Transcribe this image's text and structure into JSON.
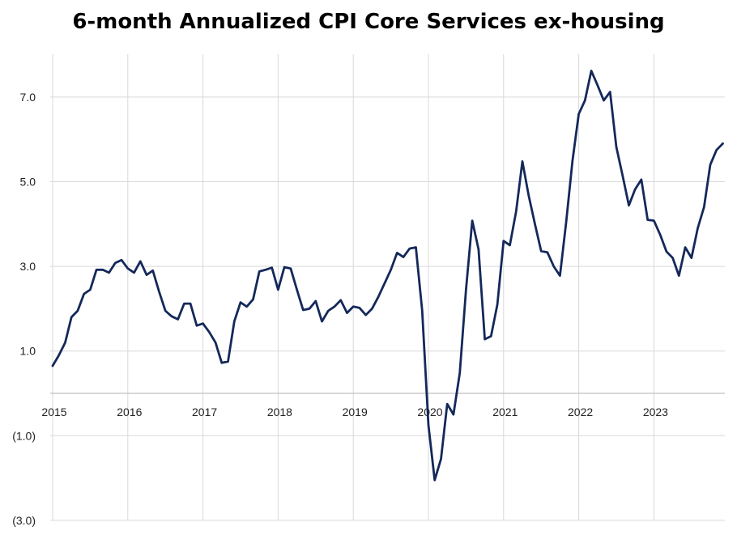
{
  "chart_data": {
    "type": "line",
    "title": "6-month Annualized CPI Core Services ex-housing",
    "xlabel": "",
    "ylabel": "",
    "x_ticks": [
      "2015",
      "2016",
      "2017",
      "2018",
      "2019",
      "2020",
      "2021",
      "2022",
      "2023"
    ],
    "y_ticks": [
      "(3.0)",
      "(1.0)",
      "1.0",
      "3.0",
      "5.0",
      "7.0"
    ],
    "y_tick_values": [
      -3,
      -1,
      1,
      3,
      5,
      7
    ],
    "xlim": [
      2015.0,
      2024.0
    ],
    "ylim": [
      -3.0,
      8.0
    ],
    "grid": true,
    "legend": "none",
    "colors": {
      "line": "#14285a",
      "grid": "#d9d9d9",
      "axis": "#bfbfbf"
    },
    "series": [
      {
        "x": [
          2015.0,
          2015.083,
          2015.167,
          2015.25,
          2015.333,
          2015.417,
          2015.5,
          2015.583,
          2015.667,
          2015.75,
          2015.833,
          2015.917,
          2016.0,
          2016.083,
          2016.167,
          2016.25,
          2016.333,
          2016.417,
          2016.5,
          2016.583,
          2016.667,
          2016.75,
          2016.833,
          2016.917,
          2017.0,
          2017.083,
          2017.167,
          2017.25,
          2017.333,
          2017.417,
          2017.5,
          2017.583,
          2017.667,
          2017.75,
          2017.833,
          2017.917,
          2018.0,
          2018.083,
          2018.167,
          2018.25,
          2018.333,
          2018.417,
          2018.5,
          2018.583,
          2018.667,
          2018.75,
          2018.833,
          2018.917,
          2019.0,
          2019.083,
          2019.167,
          2019.25,
          2019.333,
          2019.417,
          2019.5,
          2019.583,
          2019.667,
          2019.75,
          2019.833,
          2019.917,
          2020.0,
          2020.083,
          2020.167,
          2020.25,
          2020.333,
          2020.417,
          2020.5,
          2020.583,
          2020.667,
          2020.75,
          2020.833,
          2020.917,
          2021.0,
          2021.083,
          2021.167,
          2021.25,
          2021.333,
          2021.417,
          2021.5,
          2021.583,
          2021.667,
          2021.75,
          2021.833,
          2021.917,
          2022.0,
          2022.083,
          2022.167,
          2022.25,
          2022.333,
          2022.417,
          2022.5,
          2022.583,
          2022.667,
          2022.75,
          2022.833,
          2022.917,
          2023.0,
          2023.083,
          2023.167,
          2023.25,
          2023.333,
          2023.417,
          2023.5,
          2023.583,
          2023.667,
          2023.75,
          2023.833,
          2023.917
        ],
        "values": [
          0.65,
          0.9,
          1.2,
          1.8,
          1.95,
          2.35,
          2.45,
          2.92,
          2.92,
          2.85,
          3.08,
          3.15,
          2.95,
          2.85,
          3.12,
          2.8,
          2.9,
          2.4,
          1.95,
          1.82,
          1.75,
          2.12,
          2.12,
          1.6,
          1.65,
          1.45,
          1.2,
          0.72,
          0.75,
          1.7,
          2.15,
          2.05,
          2.22,
          2.88,
          2.92,
          2.97,
          2.45,
          2.98,
          2.95,
          2.45,
          1.97,
          2.0,
          2.18,
          1.7,
          1.95,
          2.05,
          2.2,
          1.9,
          2.05,
          2.02,
          1.85,
          2.0,
          2.28,
          2.6,
          2.92,
          3.32,
          3.22,
          3.42,
          3.45,
          1.95,
          -0.75,
          -2.05,
          -1.55,
          -0.25,
          -0.5,
          0.48,
          2.45,
          4.08,
          3.4,
          1.28,
          1.35,
          2.1,
          3.6,
          3.5,
          4.3,
          5.48,
          4.68,
          4.0,
          3.36,
          3.33,
          3.0,
          2.78,
          4.05,
          5.5,
          6.6,
          6.92,
          7.62,
          7.28,
          6.92,
          7.12,
          5.82,
          5.15,
          4.44,
          4.82,
          5.05,
          4.1,
          4.08,
          3.75,
          3.35,
          3.2,
          2.78,
          3.45,
          3.2,
          3.9,
          4.4,
          5.4,
          5.75,
          5.9
        ]
      }
    ]
  }
}
